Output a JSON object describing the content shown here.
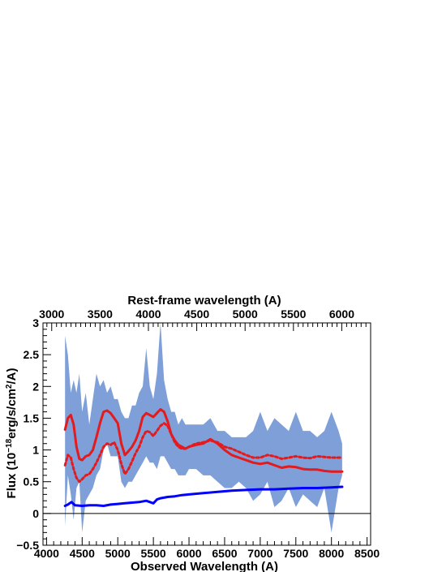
{
  "chart_data": {
    "type": "line",
    "title": "",
    "xlabel": "Observed Wavelength (A)",
    "ylabel": "Flux (10^-18 erg/s/cm^2/A)",
    "ylabel_parts": [
      "Flux (10",
      "−18",
      "erg/s/cm",
      "2",
      "/A)"
    ],
    "top_axis_label": "Rest-frame wavelength (A)",
    "xlim": [
      3950,
      8550
    ],
    "ylim": [
      -0.5,
      3.0
    ],
    "top_axis_ticks": [
      3000,
      3500,
      4000,
      4500,
      5000,
      5500,
      6000
    ],
    "top_axis_tick_labels": [
      "3000",
      "3500",
      "4000",
      "4500",
      "5000",
      "5500",
      "6000"
    ],
    "redshift": 0.3575,
    "x_ticks": [
      4000,
      4500,
      5000,
      5500,
      6000,
      6500,
      7000,
      7500,
      8000,
      8500
    ],
    "x_tick_labels": [
      "4000",
      "4500",
      "5000",
      "5500",
      "6000",
      "6500",
      "7000",
      "7500",
      "8000",
      "8500"
    ],
    "y_ticks": [
      -0.5,
      0,
      0.5,
      1,
      1.5,
      2,
      2.5,
      3
    ],
    "y_tick_labels": [
      "−0.5",
      "0",
      "0.5",
      "1",
      "1.5",
      "2",
      "2.5",
      "3"
    ],
    "zero_line": 0,
    "legend": "none",
    "series": [
      {
        "style": "solid",
        "color": "#e41a1c",
        "x": [
          4260,
          4300,
          4340,
          4380,
          4420,
          4460,
          4500,
          4550,
          4600,
          4650,
          4700,
          4750,
          4800,
          4850,
          4900,
          4950,
          5000,
          5050,
          5100,
          5150,
          5200,
          5250,
          5300,
          5350,
          5400,
          5450,
          5500,
          5550,
          5600,
          5650,
          5700,
          5750,
          5800,
          5850,
          5900,
          5950,
          6000,
          6100,
          6200,
          6300,
          6400,
          6500,
          6600,
          6700,
          6800,
          6900,
          7000,
          7100,
          7200,
          7300,
          7400,
          7500,
          7600,
          7700,
          7800,
          7900,
          8000,
          8100,
          8150
        ],
        "y": [
          1.32,
          1.5,
          1.55,
          1.4,
          1.05,
          0.86,
          0.84,
          0.9,
          0.92,
          1.0,
          1.2,
          1.42,
          1.6,
          1.62,
          1.58,
          1.5,
          1.42,
          1.1,
          0.92,
          0.98,
          1.05,
          1.15,
          1.3,
          1.52,
          1.58,
          1.55,
          1.52,
          1.58,
          1.64,
          1.6,
          1.45,
          1.25,
          1.15,
          1.08,
          1.05,
          1.02,
          1.05,
          1.08,
          1.1,
          1.17,
          1.1,
          1.0,
          0.92,
          0.88,
          0.84,
          0.8,
          0.78,
          0.8,
          0.76,
          0.72,
          0.74,
          0.73,
          0.7,
          0.69,
          0.69,
          0.67,
          0.66,
          0.66,
          0.66
        ]
      },
      {
        "style": "dotted",
        "color": "#e41a1c",
        "x": [
          4260,
          4300,
          4340,
          4380,
          4420,
          4460,
          4500,
          4550,
          4600,
          4650,
          4700,
          4750,
          4800,
          4850,
          4900,
          4950,
          5000,
          5050,
          5100,
          5150,
          5200,
          5250,
          5300,
          5350,
          5400,
          5450,
          5500,
          5550,
          5600,
          5650,
          5700,
          5750,
          5800,
          5850,
          5900,
          5950,
          6000,
          6100,
          6200,
          6300,
          6400,
          6500,
          6600,
          6700,
          6800,
          6900,
          7000,
          7100,
          7200,
          7300,
          7400,
          7500,
          7600,
          7700,
          7800,
          7900,
          8000,
          8100,
          8150
        ],
        "y": [
          0.76,
          0.92,
          0.88,
          0.7,
          0.56,
          0.5,
          0.54,
          0.6,
          0.62,
          0.7,
          0.8,
          0.92,
          1.05,
          1.1,
          1.08,
          1.12,
          1.0,
          0.78,
          0.62,
          0.7,
          0.82,
          0.95,
          1.05,
          1.2,
          1.3,
          1.28,
          1.22,
          1.3,
          1.38,
          1.42,
          1.38,
          1.25,
          1.12,
          1.05,
          1.02,
          1.02,
          1.05,
          1.1,
          1.12,
          1.15,
          1.12,
          1.05,
          1.02,
          0.97,
          0.92,
          0.88,
          0.88,
          0.92,
          0.9,
          0.86,
          0.88,
          0.9,
          0.88,
          0.87,
          0.9,
          0.89,
          0.88,
          0.88,
          0.88
        ]
      },
      {
        "style": "solid",
        "color": "#0000ff",
        "x": [
          4260,
          4300,
          4350,
          4400,
          4500,
          4600,
          4700,
          4800,
          4900,
          5000,
          5100,
          5200,
          5300,
          5400,
          5500,
          5550,
          5600,
          5700,
          5800,
          5900,
          6000,
          6200,
          6400,
          6600,
          6800,
          7000,
          7200,
          7400,
          7600,
          7800,
          8000,
          8150
        ],
        "y": [
          0.12,
          0.14,
          0.18,
          0.13,
          0.12,
          0.13,
          0.13,
          0.12,
          0.14,
          0.15,
          0.16,
          0.17,
          0.18,
          0.2,
          0.16,
          0.22,
          0.24,
          0.26,
          0.27,
          0.29,
          0.3,
          0.32,
          0.34,
          0.36,
          0.37,
          0.38,
          0.38,
          0.39,
          0.4,
          0.4,
          0.41,
          0.42
        ]
      }
    ],
    "band": {
      "color": "#7f9fd8",
      "x": [
        4260,
        4300,
        4340,
        4380,
        4420,
        4460,
        4500,
        4550,
        4600,
        4650,
        4700,
        4750,
        4800,
        4850,
        4900,
        4950,
        5000,
        5050,
        5100,
        5150,
        5200,
        5250,
        5300,
        5350,
        5400,
        5450,
        5500,
        5550,
        5600,
        5650,
        5700,
        5750,
        5800,
        5850,
        5900,
        5950,
        6000,
        6100,
        6200,
        6300,
        6400,
        6500,
        6600,
        6700,
        6800,
        6900,
        7000,
        7100,
        7200,
        7300,
        7400,
        7500,
        7600,
        7700,
        7800,
        7900,
        8000,
        8100,
        8150
      ],
      "upper": [
        2.8,
        2.5,
        1.9,
        2.1,
        1.9,
        2.2,
        1.6,
        1.9,
        1.4,
        1.8,
        2.2,
        2.0,
        2.1,
        1.9,
        2.0,
        1.8,
        1.8,
        1.6,
        1.5,
        1.5,
        1.7,
        1.7,
        1.9,
        2.0,
        2.6,
        2.0,
        1.8,
        2.2,
        3.0,
        2.1,
        1.8,
        1.6,
        1.6,
        1.4,
        1.5,
        1.4,
        1.4,
        1.4,
        1.4,
        1.5,
        1.3,
        1.3,
        1.2,
        1.2,
        1.2,
        1.3,
        1.6,
        1.3,
        1.5,
        1.4,
        1.3,
        1.6,
        1.3,
        1.3,
        1.2,
        1.3,
        1.6,
        1.3,
        1.1
      ],
      "lower": [
        -0.2,
        0.6,
        0.3,
        -0.1,
        0.4,
        0.5,
        -0.3,
        0.2,
        0.3,
        0.4,
        0.6,
        0.7,
        1.0,
        1.1,
        0.9,
        0.9,
        0.9,
        0.5,
        0.4,
        0.5,
        0.5,
        0.6,
        0.7,
        0.8,
        0.9,
        0.8,
        0.8,
        0.7,
        0.9,
        0.9,
        0.8,
        0.7,
        0.7,
        0.6,
        0.6,
        0.6,
        0.7,
        0.7,
        0.6,
        0.6,
        0.5,
        0.4,
        0.4,
        0.5,
        0.4,
        0.2,
        0.3,
        0.5,
        0.1,
        0.2,
        0.4,
        0.1,
        0.3,
        0.2,
        0.1,
        0.4,
        -0.3,
        0.4,
        0.6
      ]
    }
  }
}
